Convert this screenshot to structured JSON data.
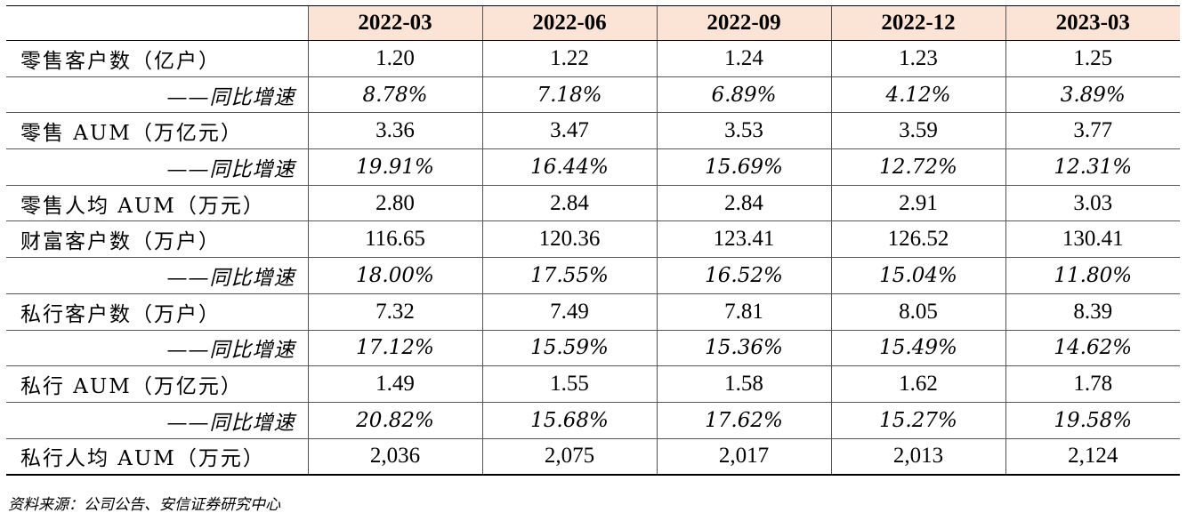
{
  "table": {
    "headers": [
      "",
      "2022-03",
      "2022-06",
      "2022-09",
      "2022-12",
      "2023-03"
    ],
    "rows": [
      {
        "label": "零售客户数（亿户）",
        "type": "value",
        "values": [
          "1.20",
          "1.22",
          "1.24",
          "1.23",
          "1.25"
        ]
      },
      {
        "label": "——同比增速",
        "type": "growth",
        "values": [
          "8.78%",
          "7.18%",
          "6.89%",
          "4.12%",
          "3.89%"
        ]
      },
      {
        "label": "零售 AUM（万亿元）",
        "type": "value",
        "values": [
          "3.36",
          "3.47",
          "3.53",
          "3.59",
          "3.77"
        ]
      },
      {
        "label": "——同比增速",
        "type": "growth",
        "values": [
          "19.91%",
          "16.44%",
          "15.69%",
          "12.72%",
          "12.31%"
        ]
      },
      {
        "label": "零售人均 AUM（万元）",
        "type": "value",
        "values": [
          "2.80",
          "2.84",
          "2.84",
          "2.91",
          "3.03"
        ]
      },
      {
        "label": "财富客户数（万户）",
        "type": "value",
        "values": [
          "116.65",
          "120.36",
          "123.41",
          "126.52",
          "130.41"
        ]
      },
      {
        "label": "——同比增速",
        "type": "growth",
        "values": [
          "18.00%",
          "17.55%",
          "16.52%",
          "15.04%",
          "11.80%"
        ]
      },
      {
        "label": "私行客户数（万户）",
        "type": "value",
        "values": [
          "7.32",
          "7.49",
          "7.81",
          "8.05",
          "8.39"
        ]
      },
      {
        "label": "——同比增速",
        "type": "growth",
        "values": [
          "17.12%",
          "15.59%",
          "15.36%",
          "15.49%",
          "14.62%"
        ]
      },
      {
        "label": "私行 AUM（万亿元）",
        "type": "value",
        "values": [
          "1.49",
          "1.55",
          "1.58",
          "1.62",
          "1.78"
        ]
      },
      {
        "label": "——同比增速",
        "type": "growth",
        "values": [
          "20.82%",
          "15.68%",
          "17.62%",
          "15.27%",
          "19.58%"
        ]
      },
      {
        "label": "私行人均 AUM（万元）",
        "type": "value",
        "values": [
          "2,036",
          "2,075",
          "2,017",
          "2,013",
          "2,124"
        ]
      }
    ]
  },
  "source": "资料来源：公司公告、安信证券研究中心"
}
